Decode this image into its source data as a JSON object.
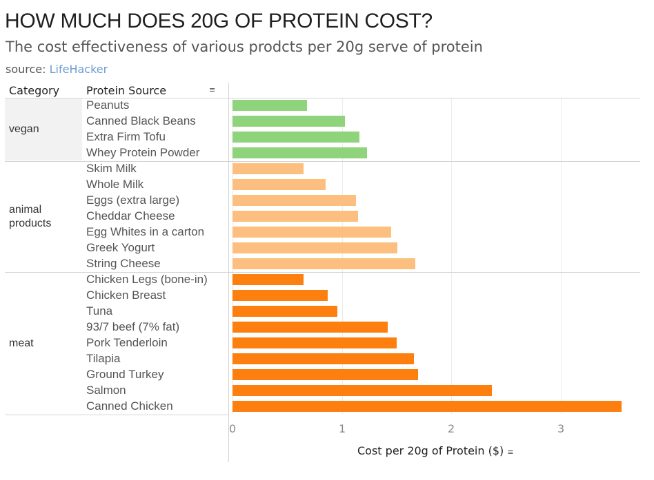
{
  "header": {
    "title": "HOW MUCH DOES 20G OF PROTEIN COST?",
    "subtitle": "The cost effectiveness of various prodcts per 20g serve of protein",
    "source_label": "source:",
    "source_link": "LifeHacker"
  },
  "table": {
    "category_header": "Category",
    "source_header": "Protein Source",
    "sort_icon": "sort-descending-icon"
  },
  "colors": {
    "vegan": "#8fd37a",
    "animal products": "#fdbf80",
    "meat": "#fd7f0f"
  },
  "chart_data": {
    "type": "bar",
    "orientation": "horizontal",
    "xlabel": "Cost per 20g of Protein ($)",
    "xlim": [
      -0.04,
      3.6
    ],
    "xticks": [
      0,
      1,
      2,
      3
    ],
    "grid": true,
    "groups": [
      {
        "category": "vegan",
        "items": [
          {
            "name": "Peanuts",
            "value": 0.68
          },
          {
            "name": "Canned Black Beans",
            "value": 1.03
          },
          {
            "name": "Extra Firm Tofu",
            "value": 1.16
          },
          {
            "name": "Whey Protein Powder",
            "value": 1.23
          }
        ]
      },
      {
        "category": "animal products",
        "items": [
          {
            "name": "Skim Milk",
            "value": 0.65
          },
          {
            "name": "Whole Milk",
            "value": 0.85
          },
          {
            "name": "Eggs (extra large)",
            "value": 1.13
          },
          {
            "name": "Cheddar Cheese",
            "value": 1.15
          },
          {
            "name": "Egg Whites in a carton",
            "value": 1.45
          },
          {
            "name": "Greek Yogurt",
            "value": 1.51
          },
          {
            "name": "String Cheese",
            "value": 1.67
          }
        ]
      },
      {
        "category": "meat",
        "items": [
          {
            "name": "Chicken Legs (bone-in)",
            "value": 0.65
          },
          {
            "name": "Chicken Breast",
            "value": 0.87
          },
          {
            "name": "Tuna",
            "value": 0.96
          },
          {
            "name": "93/7 beef (7% fat)",
            "value": 1.42
          },
          {
            "name": "Pork Tenderloin",
            "value": 1.5
          },
          {
            "name": "Tilapia",
            "value": 1.66
          },
          {
            "name": "Ground Turkey",
            "value": 1.7
          },
          {
            "name": "Salmon",
            "value": 2.37
          },
          {
            "name": "Canned Chicken",
            "value": 3.56
          }
        ]
      }
    ]
  }
}
